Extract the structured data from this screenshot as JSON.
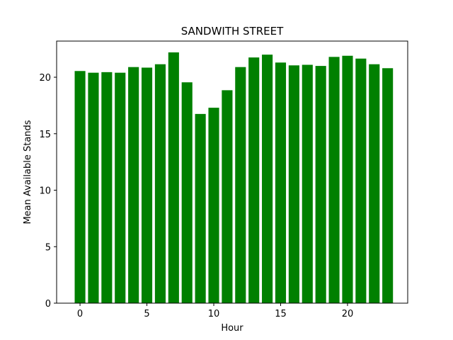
{
  "chart_data": {
    "type": "bar",
    "title": "SANDWITH STREET",
    "xlabel": "Hour",
    "ylabel": "Mean Available Stands",
    "x": [
      0,
      1,
      2,
      3,
      4,
      5,
      6,
      7,
      8,
      9,
      10,
      11,
      12,
      13,
      14,
      15,
      16,
      17,
      18,
      19,
      20,
      21,
      22,
      23
    ],
    "values": [
      20.55,
      20.4,
      20.45,
      20.4,
      20.9,
      20.85,
      21.15,
      22.2,
      19.55,
      16.75,
      17.3,
      18.85,
      20.9,
      21.75,
      22.0,
      21.3,
      21.05,
      21.1,
      21.0,
      21.8,
      21.9,
      21.65,
      21.15,
      20.8
    ],
    "xlim": [
      -1.75,
      24.5
    ],
    "ylim": [
      0,
      23.2
    ],
    "xticks": [
      0,
      5,
      10,
      15,
      20
    ],
    "yticks": [
      0,
      5,
      10,
      15,
      20
    ],
    "bar_color": "#008000",
    "grid": false
  }
}
